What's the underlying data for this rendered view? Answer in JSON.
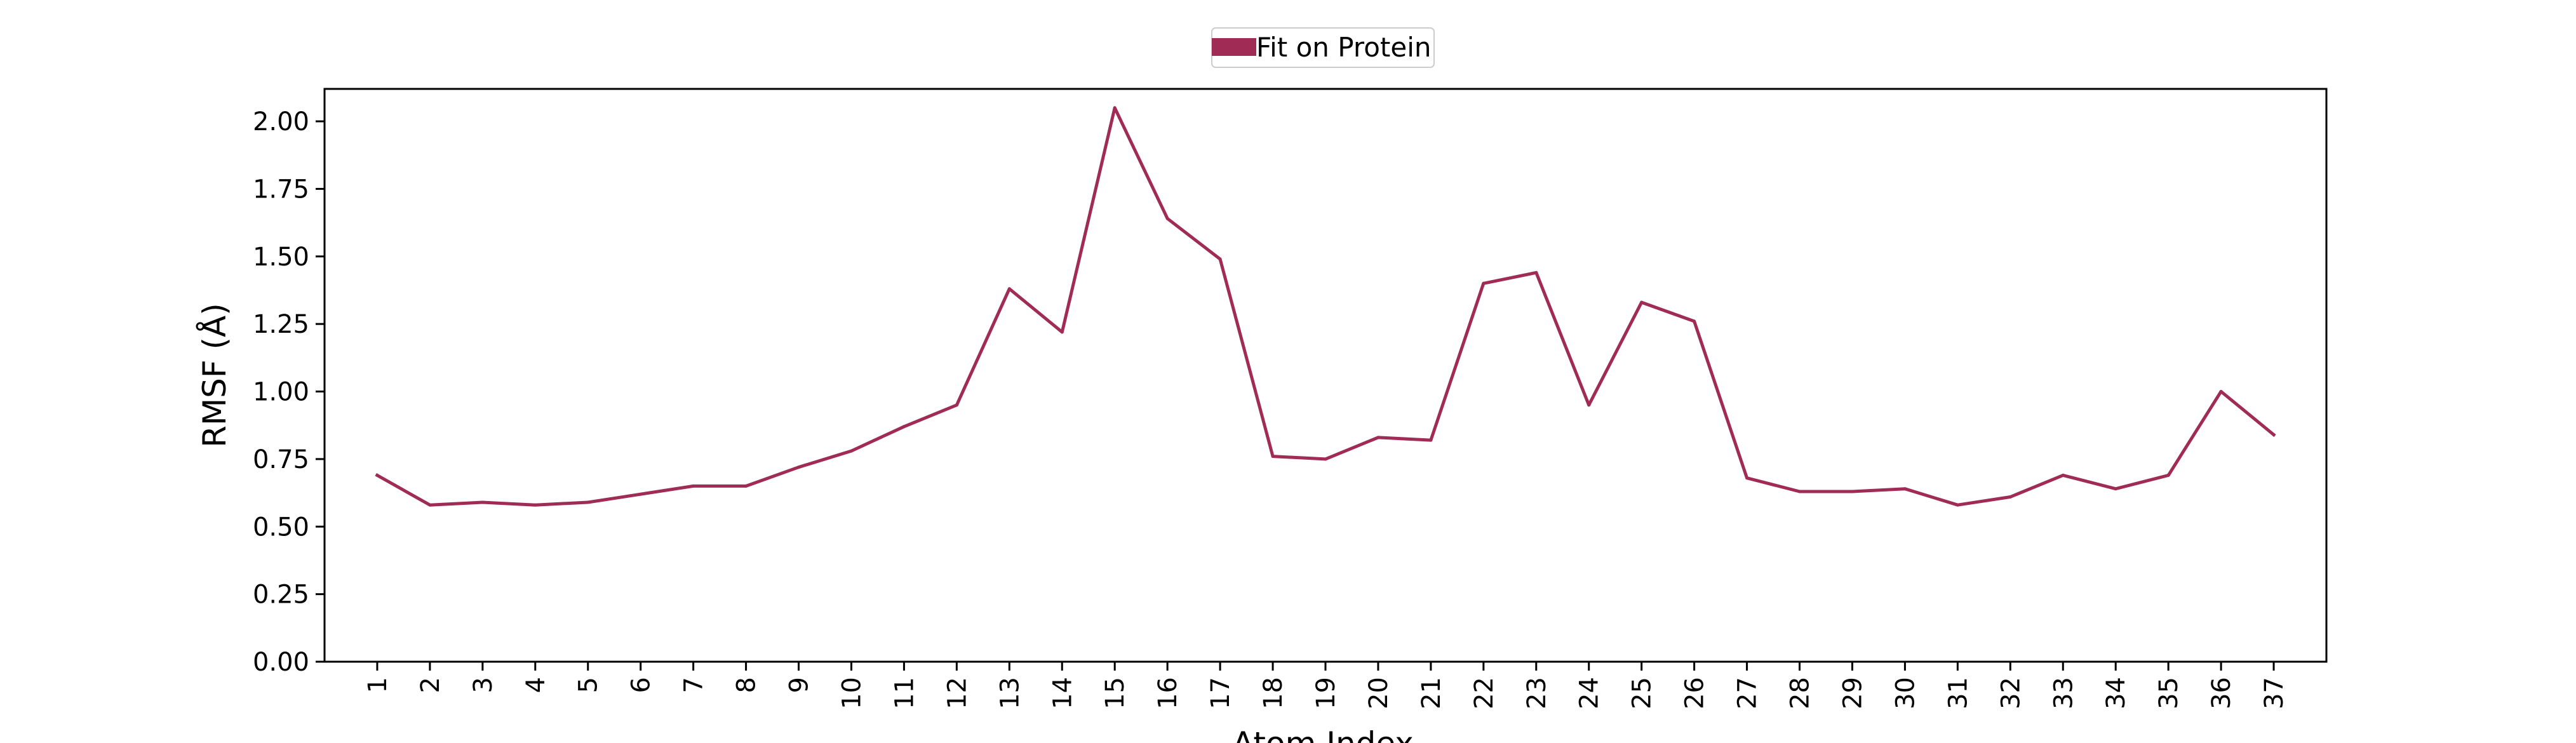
{
  "chart_data": {
    "type": "line",
    "title": "",
    "xlabel": "Atom Index",
    "ylabel": "RMSF (Å)",
    "legend": {
      "placement": "top-center",
      "entries": [
        "Fit on Protein"
      ]
    },
    "grid": false,
    "xlim": [
      0,
      38
    ],
    "ylim": [
      0,
      2.12
    ],
    "x_tick_rotation_deg": 90,
    "categories": [
      "1",
      "2",
      "3",
      "4",
      "5",
      "6",
      "7",
      "8",
      "9",
      "10",
      "11",
      "12",
      "13",
      "14",
      "15",
      "16",
      "17",
      "18",
      "19",
      "20",
      "21",
      "22",
      "23",
      "24",
      "25",
      "26",
      "27",
      "28",
      "29",
      "30",
      "31",
      "32",
      "33",
      "34",
      "35",
      "36",
      "37"
    ],
    "yticks": [
      0.0,
      0.25,
      0.5,
      0.75,
      1.0,
      1.25,
      1.5,
      1.75,
      2.0
    ],
    "ytick_labels": [
      "0.00",
      "0.25",
      "0.50",
      "0.75",
      "1.00",
      "1.25",
      "1.50",
      "1.75",
      "2.00"
    ],
    "series": [
      {
        "name": "Fit on Protein",
        "color": "#a02b55",
        "values": [
          0.69,
          0.58,
          0.59,
          0.58,
          0.59,
          0.62,
          0.65,
          0.65,
          0.72,
          0.78,
          0.87,
          0.95,
          1.38,
          1.22,
          2.05,
          1.64,
          1.49,
          0.76,
          0.75,
          0.83,
          0.82,
          1.4,
          1.44,
          0.95,
          1.33,
          1.26,
          0.68,
          0.63,
          0.63,
          0.64,
          0.58,
          0.61,
          0.69,
          0.64,
          0.69,
          1.0,
          0.84
        ]
      }
    ]
  }
}
